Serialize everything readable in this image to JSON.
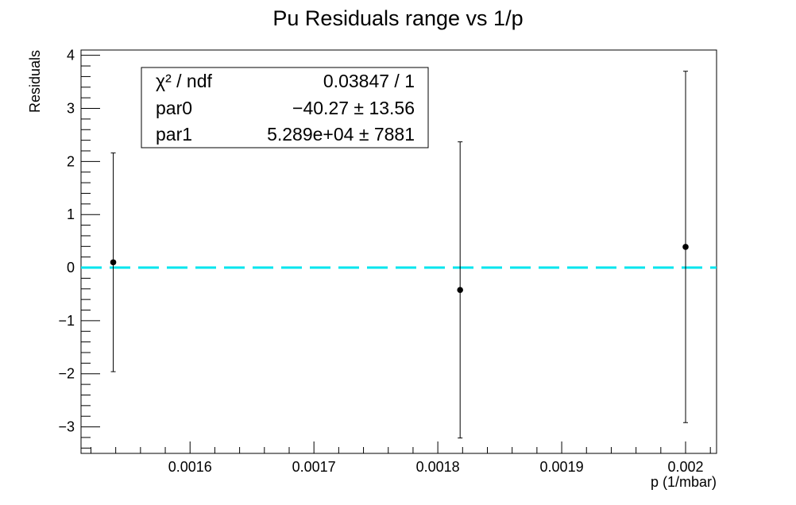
{
  "chart_data": {
    "type": "scatter",
    "title": "Pu Residuals range vs 1/p",
    "xlabel": "p (1/mbar)",
    "ylabel": "Residuals",
    "xlim": [
      0.001512,
      0.002025
    ],
    "ylim": [
      -3.5,
      4.1
    ],
    "x_ticks": [
      0.0016,
      0.0017,
      0.0018,
      0.0019,
      0.002
    ],
    "x_tick_labels": [
      "0.0016",
      "0.0017",
      "0.0018",
      "0.0019",
      "0.002"
    ],
    "y_ticks": [
      -3,
      -2,
      -1,
      0,
      1,
      2,
      3,
      4
    ],
    "y_tick_labels": [
      "−3",
      "−2",
      "−1",
      "0",
      "1",
      "2",
      "3",
      "4"
    ],
    "grid": false,
    "series": [
      {
        "x": [
          0.001538,
          0.001818,
          0.002
        ],
        "y": [
          0.1,
          -0.42,
          0.39
        ],
        "yerr": [
          2.06,
          2.79,
          3.31
        ]
      }
    ],
    "reference_line": {
      "y": 0,
      "color": "#00e5ee",
      "style": "dashed"
    },
    "stats_box": {
      "placement": "top-left",
      "rows": [
        {
          "label": "χ² / ndf",
          "value": "0.03847 / 1"
        },
        {
          "label": "par0",
          "value": "−40.27 ± 13.56"
        },
        {
          "label": "par1",
          "value": "5.289e+04 ±  7881"
        }
      ]
    }
  }
}
